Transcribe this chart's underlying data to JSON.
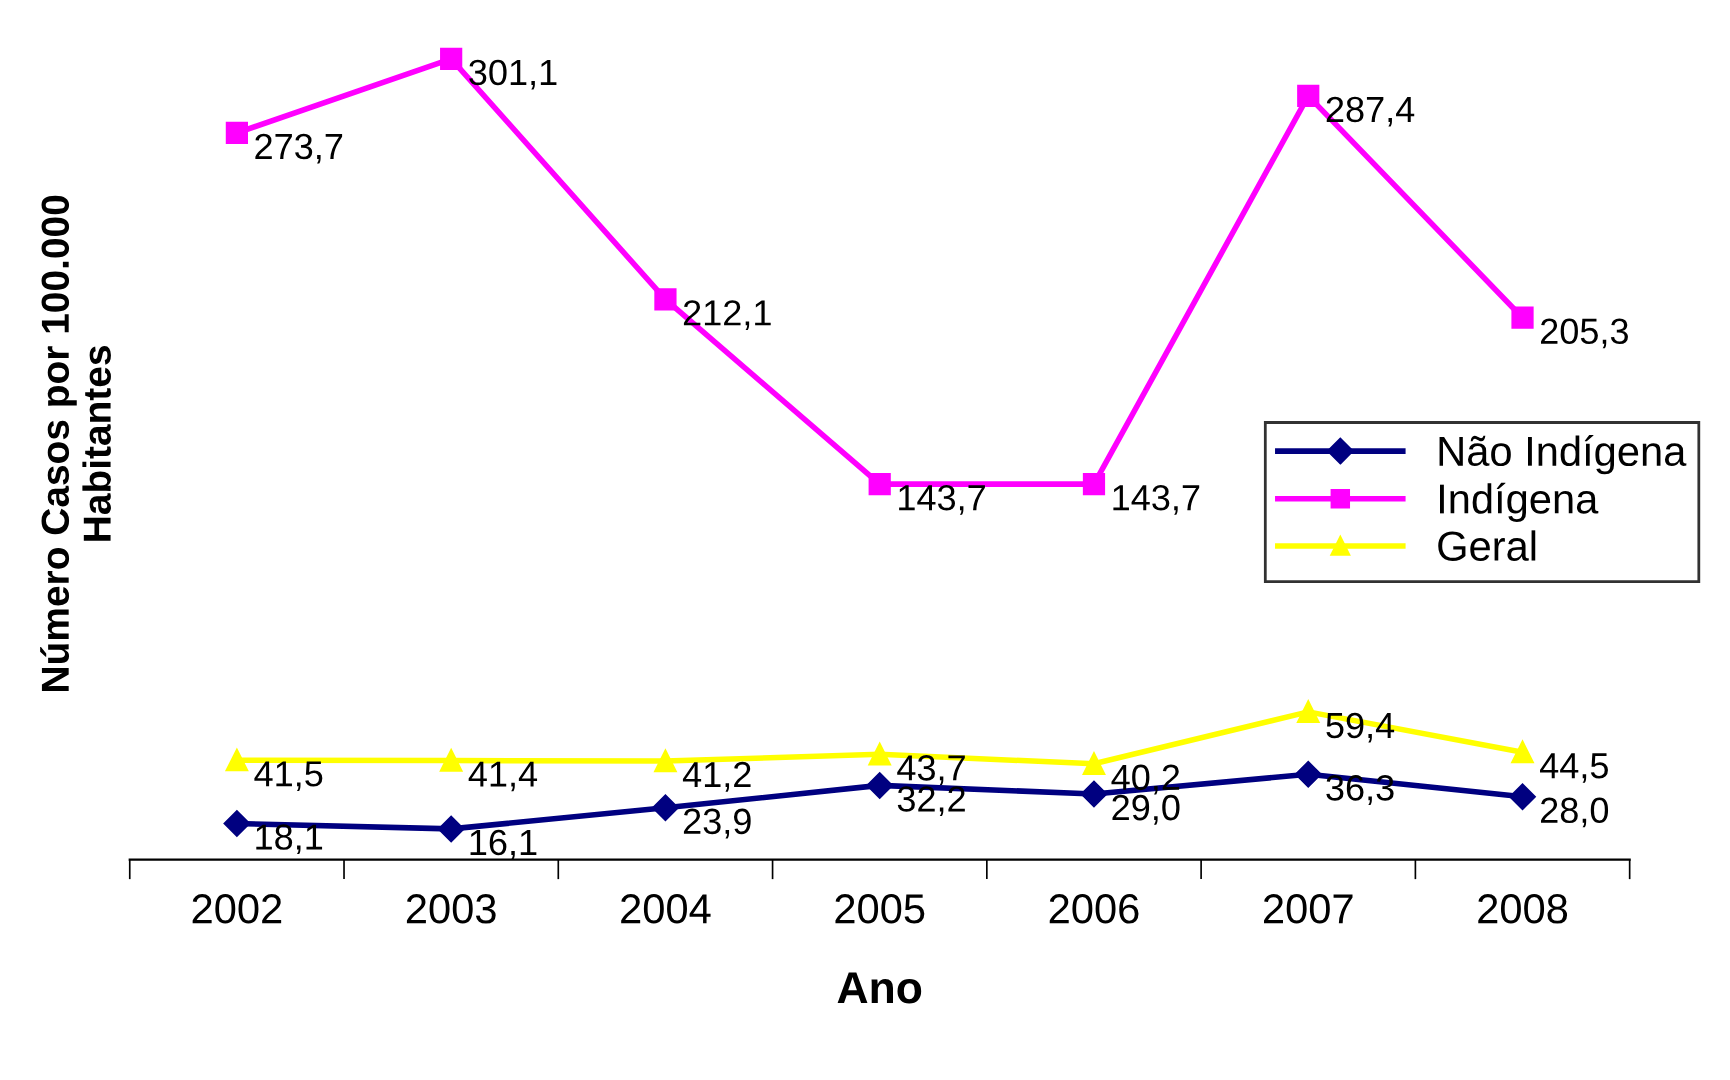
{
  "chart_data": {
    "type": "line",
    "xlabel": "Ano",
    "ylabel": "Número Casos por 100.000\nHabitantes",
    "categories": [
      "2002",
      "2003",
      "2004",
      "2005",
      "2006",
      "2007",
      "2008"
    ],
    "legend": "right",
    "tick_labels": "x",
    "series": [
      {
        "name": "Não Indígena",
        "color": "#000080",
        "marker": "diamond",
        "values": [
          18.1,
          16.1,
          23.9,
          32.2,
          29.0,
          36.3,
          28.0
        ],
        "value_labels": [
          "18,1",
          "16,1",
          "23,9",
          "32,2",
          "29,0",
          "36,3",
          "28,0"
        ]
      },
      {
        "name": "Indígena",
        "color": "#ff00ff",
        "marker": "square",
        "values": [
          273.7,
          301.1,
          212.1,
          143.7,
          143.7,
          287.4,
          205.3
        ],
        "value_labels": [
          "273,7",
          "301,1",
          "212,1",
          "143,7",
          "143,7",
          "287,4",
          "205,3"
        ]
      },
      {
        "name": "Geral",
        "color": "#ffff00",
        "marker": "triangle",
        "values": [
          41.5,
          41.4,
          41.2,
          43.7,
          40.2,
          59.4,
          44.5
        ],
        "value_labels": [
          "41,5",
          "41,4",
          "41,2",
          "43,7",
          "40,2",
          "59,4",
          "44,5"
        ]
      }
    ]
  }
}
